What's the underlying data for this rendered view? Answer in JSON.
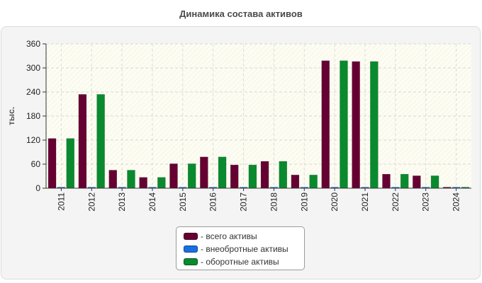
{
  "chart_data": {
    "type": "bar",
    "title": "Динамика состава активов",
    "ylabel": "тыс.",
    "xlabel": "",
    "ylim": [
      0,
      360
    ],
    "yticks": [
      0,
      60,
      120,
      180,
      240,
      300,
      360
    ],
    "categories": [
      "2011",
      "2012",
      "2013",
      "2014",
      "2015",
      "2016",
      "2017",
      "2018",
      "2019",
      "2020",
      "2021",
      "2022",
      "2023",
      "2024"
    ],
    "series": [
      {
        "name": "- всего активы",
        "color": "#660033",
        "values": [
          124,
          234,
          45,
          27,
          61,
          78,
          58,
          67,
          33,
          318,
          316,
          35,
          31,
          2
        ]
      },
      {
        "name": "- внеобротные активы",
        "color": "#1a6fe0",
        "values": [
          0,
          0,
          0,
          0,
          0,
          0,
          0,
          0,
          0,
          0,
          0,
          0,
          0,
          0
        ]
      },
      {
        "name": "- оборотные активы",
        "color": "#0a8a2e",
        "values": [
          124,
          234,
          45,
          27,
          61,
          78,
          58,
          67,
          33,
          318,
          316,
          35,
          31,
          2
        ]
      }
    ],
    "legend_position": "bottom-center",
    "grid": true
  }
}
